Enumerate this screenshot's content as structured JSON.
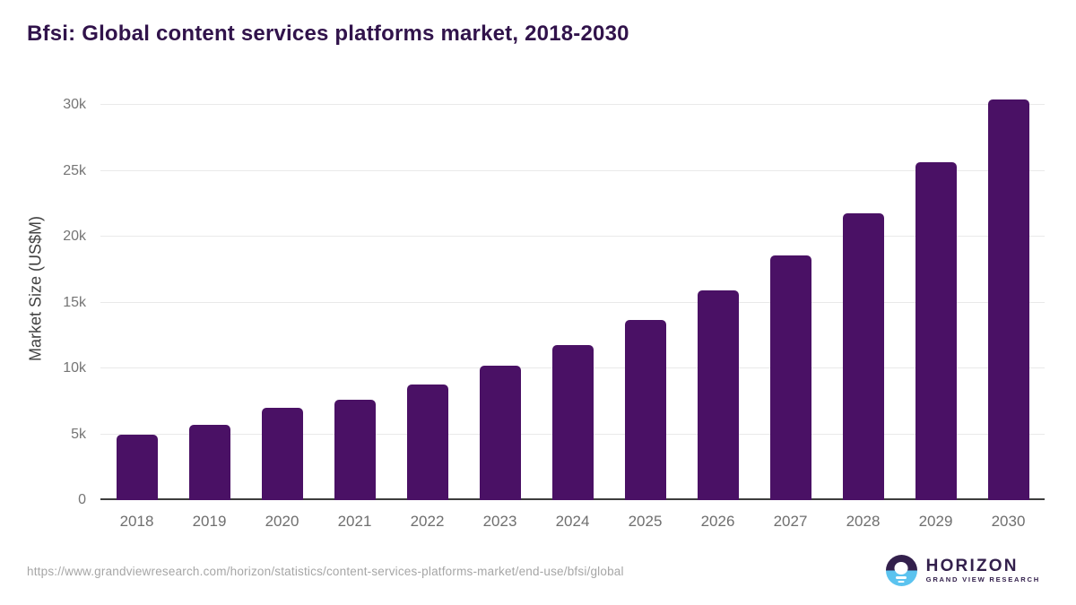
{
  "chart_data": {
    "type": "bar",
    "title": "Bfsi: Global content services platforms market, 2018-2030",
    "xlabel": "",
    "ylabel": "Market Size (US$M)",
    "categories": [
      "2018",
      "2019",
      "2020",
      "2021",
      "2022",
      "2023",
      "2024",
      "2025",
      "2026",
      "2027",
      "2028",
      "2029",
      "2030"
    ],
    "values": [
      4950,
      5700,
      7000,
      7600,
      8750,
      10200,
      11750,
      13700,
      15900,
      18550,
      21750,
      25650,
      30400
    ],
    "series_name": "Market Size (US$M)",
    "y_ticks": [
      {
        "label": "0",
        "value": 0
      },
      {
        "label": "5k",
        "value": 5000
      },
      {
        "label": "10k",
        "value": 10000
      },
      {
        "label": "15k",
        "value": 15000
      },
      {
        "label": "20k",
        "value": 20000
      },
      {
        "label": "25k",
        "value": 25000
      },
      {
        "label": "30k",
        "value": 30000
      }
    ],
    "ylim": [
      0,
      32000
    ],
    "grid": "horizontal",
    "legend": "none",
    "bar_color": "#4a1165"
  },
  "footer": {
    "source_url": "https://www.grandviewresearch.com/horizon/statistics/content-services-platforms-market/end-use/bfsi/global",
    "logo": {
      "title": "HORIZON",
      "subtitle": "GRAND VIEW RESEARCH"
    }
  },
  "colors": {
    "bar": "#4a1165",
    "title_text": "#31134b",
    "axis_tick_text": "#757575",
    "x_label_text": "#6f6f6f",
    "y_axis_title_text": "#424242",
    "gridline": "#e9e9e9",
    "axis_line": "#3d3d3d",
    "source_text": "#a6a6a6",
    "logo_purple": "#33204c",
    "logo_blue": "#5bc3ef"
  }
}
